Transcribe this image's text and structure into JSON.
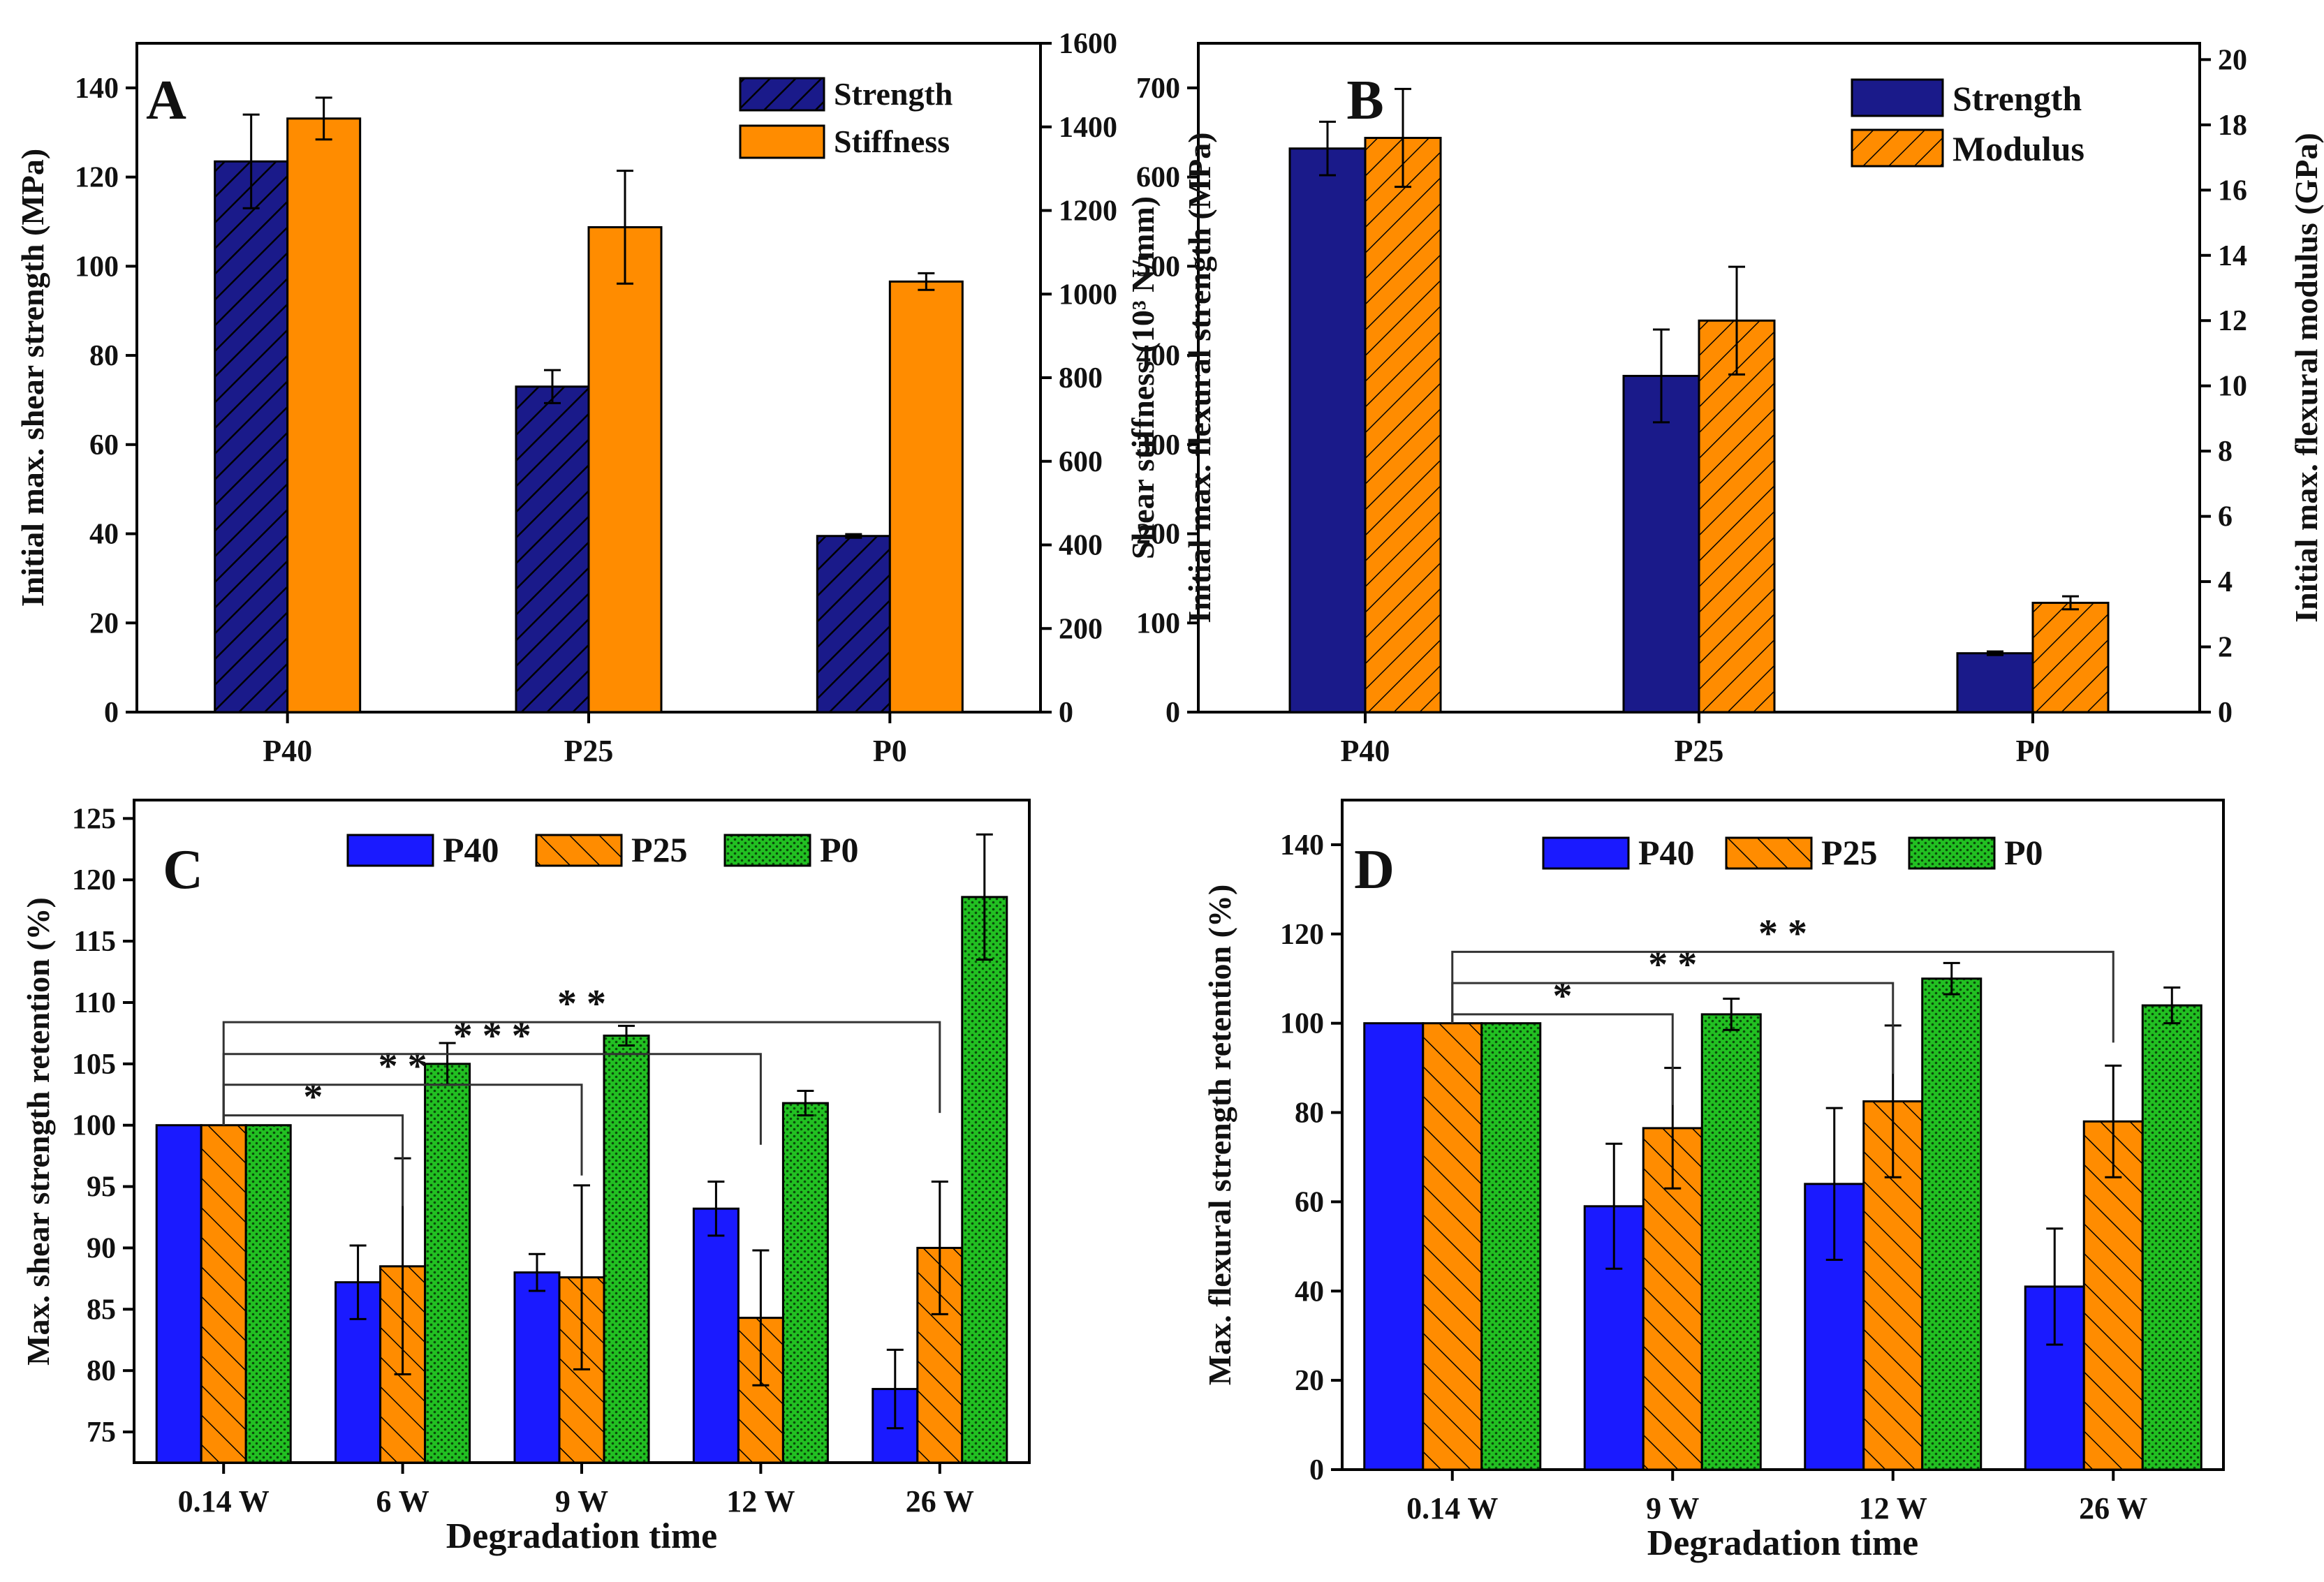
{
  "colors": {
    "navy": "#1a1a8a",
    "orange": "#ff8c00",
    "blue": "#1a1aff",
    "green": "#22c022",
    "hatch_light": "#000000"
  },
  "chart_data": [
    {
      "panel": "A",
      "type": "bar",
      "categories": [
        "P40",
        "P25",
        "P0"
      ],
      "xlabel": "",
      "ylabel": "Initial max. shear strength (MPa)",
      "y2label": "Shear stiffness (10³ N/mm)",
      "ylim": [
        0,
        150
      ],
      "yticks": [
        0,
        20,
        40,
        60,
        80,
        100,
        120,
        140
      ],
      "y2lim": [
        0,
        1600
      ],
      "y2ticks": [
        0,
        200,
        400,
        600,
        800,
        1000,
        1200,
        1400,
        1600
      ],
      "legend_position": "top-right",
      "series": [
        {
          "name": "Strength",
          "axis": "left",
          "color": "#1a1a8a",
          "pattern": "hatch",
          "values": [
            123.5,
            73,
            39.5
          ],
          "errors": [
            10.5,
            3.7,
            0.4
          ]
        },
        {
          "name": "Stiffness",
          "axis": "right",
          "color": "#ff8c00",
          "pattern": "solid",
          "values": [
            1420,
            1160,
            1030
          ],
          "errors": [
            50,
            135,
            20
          ]
        }
      ]
    },
    {
      "panel": "B",
      "type": "bar",
      "categories": [
        "P40",
        "P25",
        "P0"
      ],
      "xlabel": "",
      "ylabel": "Initial max. flexural strength (MPa)",
      "y2label": "Initial max. flexural modulus (GPa)",
      "ylim": [
        0,
        750
      ],
      "yticks": [
        0,
        100,
        200,
        300,
        400,
        500,
        600,
        700
      ],
      "y2lim": [
        0,
        20.5
      ],
      "y2ticks": [
        0,
        2,
        4,
        6,
        8,
        10,
        12,
        14,
        16,
        18,
        20
      ],
      "legend_position": "top-right",
      "series": [
        {
          "name": "Strength",
          "axis": "left",
          "color": "#1a1a8a",
          "pattern": "solid",
          "values": [
            632,
            377,
            66
          ],
          "errors": [
            30,
            52,
            2
          ]
        },
        {
          "name": "Modulus",
          "axis": "right",
          "color": "#ff8c00",
          "pattern": "hatch",
          "values": [
            17.6,
            12.0,
            3.35
          ],
          "errors": [
            1.5,
            1.65,
            0.2
          ]
        }
      ]
    },
    {
      "panel": "C",
      "type": "bar",
      "categories": [
        "0.14 W",
        "6 W",
        "9 W",
        "12 W",
        "26 W"
      ],
      "xlabel": "Degradation time",
      "ylabel": "Max. shear strength retention (%)",
      "ylim": [
        72.5,
        126.5
      ],
      "yticks": [
        75,
        80,
        85,
        90,
        95,
        100,
        105,
        110,
        115,
        120,
        125
      ],
      "legend_position": "top-center",
      "series": [
        {
          "name": "P40",
          "color": "#1a1aff",
          "pattern": "solid",
          "values": [
            100,
            87.2,
            88,
            93.2,
            78.5
          ],
          "errors": [
            0,
            3,
            1.5,
            2.2,
            3.2
          ]
        },
        {
          "name": "P25",
          "color": "#ff8c00",
          "pattern": "hatch",
          "values": [
            100,
            88.5,
            87.6,
            84.3,
            90
          ],
          "errors": [
            0,
            8.8,
            7.5,
            5.5,
            5.4
          ]
        },
        {
          "name": "P0",
          "color": "#22c022",
          "pattern": "dots",
          "values": [
            100,
            105,
            107.3,
            101.8,
            118.6
          ],
          "errors": [
            0,
            1.7,
            0.8,
            1.0,
            5.1
          ]
        }
      ],
      "significance": [
        {
          "label": "*",
          "from": 0,
          "to": 1,
          "level": 100.8
        },
        {
          "label": "**",
          "from": 0,
          "to": 2,
          "level": 103.3
        },
        {
          "label": "***",
          "from": 0,
          "to": 3,
          "level": 105.8
        },
        {
          "label": "**",
          "from": 0,
          "to": 4,
          "level": 108.4
        }
      ]
    },
    {
      "panel": "D",
      "type": "bar",
      "categories": [
        "0.14 W",
        "9 W",
        "12 W",
        "26 W"
      ],
      "xlabel": "Degradation time",
      "ylabel": "Max. flexural strength retention (%)",
      "ylim": [
        0,
        150
      ],
      "yticks": [
        0,
        20,
        40,
        60,
        80,
        100,
        120,
        140
      ],
      "legend_position": "top-center",
      "series": [
        {
          "name": "P40",
          "color": "#1a1aff",
          "pattern": "solid",
          "values": [
            100,
            59,
            64,
            41
          ],
          "errors": [
            0,
            14,
            17,
            13
          ]
        },
        {
          "name": "P25",
          "color": "#ff8c00",
          "pattern": "hatch",
          "values": [
            100,
            76.5,
            82.5,
            78
          ],
          "errors": [
            0,
            13.5,
            17,
            12.5
          ]
        },
        {
          "name": "P0",
          "color": "#22c022",
          "pattern": "dots",
          "values": [
            100,
            102,
            110,
            104
          ],
          "errors": [
            0,
            3.5,
            3.5,
            4
          ]
        }
      ],
      "significance": [
        {
          "label": "*",
          "from": 0,
          "to": 1,
          "level": 102
        },
        {
          "label": "**",
          "from": 0,
          "to": 2,
          "level": 109
        },
        {
          "label": "**",
          "from": 0,
          "to": 3,
          "level": 116
        }
      ]
    }
  ]
}
